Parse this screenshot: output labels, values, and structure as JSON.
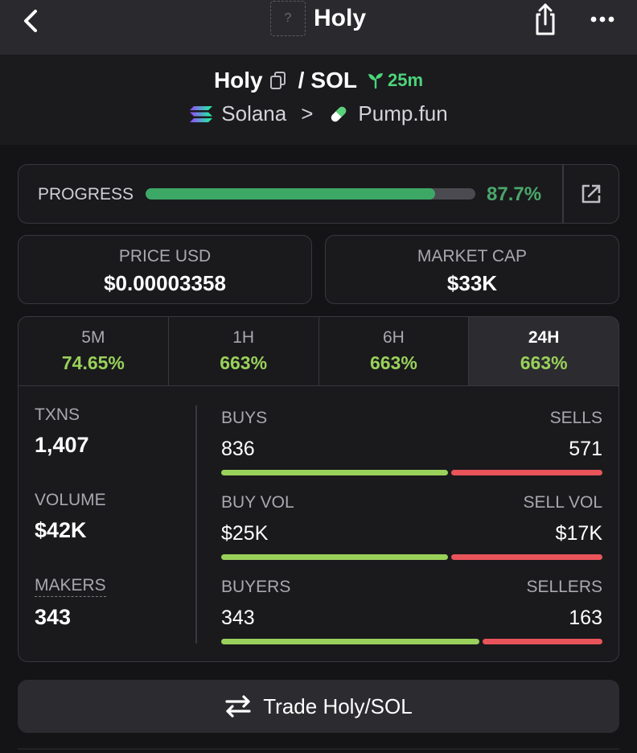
{
  "topbar": {
    "title": "Holy",
    "thumb_placeholder": "?",
    "icons": [
      "back-arrow-icon",
      "share-icon",
      "more-icon"
    ]
  },
  "header": {
    "token": "Holy",
    "separator": "/",
    "quote": "SOL",
    "age": "25m",
    "chain": "Solana",
    "chevron": ">",
    "dex": "Pump.fun",
    "icons": [
      "copy-icon",
      "sprout-icon",
      "solana-logo-icon",
      "pill-icon"
    ]
  },
  "progress": {
    "label": "PROGRESS",
    "percent_text": "87.7%",
    "fraction": 0.877,
    "colors": {
      "fill": "#3da866",
      "track": "#4a4a50",
      "text": "#4aa86a"
    }
  },
  "stats": {
    "price_label": "PRICE USD",
    "price_value": "$0.00003358",
    "mcap_label": "MARKET CAP",
    "mcap_value": "$33K"
  },
  "timeframes": [
    {
      "label": "5M",
      "change": "74.65%",
      "active": false
    },
    {
      "label": "1H",
      "change": "663%",
      "active": false
    },
    {
      "label": "6H",
      "change": "663%",
      "active": false
    },
    {
      "label": "24H",
      "change": "663%",
      "active": true
    }
  ],
  "metrics": [
    {
      "label": "TXNS",
      "value": "1,407"
    },
    {
      "label": "VOLUME",
      "value": "$42K"
    },
    {
      "label": "MAKERS",
      "value": "343"
    }
  ],
  "splits": [
    {
      "left_label": "BUYS",
      "right_label": "SELLS",
      "left_value": "836",
      "right_value": "571",
      "buy_fraction": 0.594
    },
    {
      "left_label": "BUY VOL",
      "right_label": "SELL VOL",
      "left_value": "$25K",
      "right_value": "$17K",
      "buy_fraction": 0.595
    },
    {
      "left_label": "BUYERS",
      "right_label": "SELLERS",
      "left_value": "343",
      "right_value": "163",
      "buy_fraction": 0.678
    }
  ],
  "trade_button": {
    "label": "Trade Holy/SOL",
    "icon": "swap-arrows-icon"
  },
  "colors": {
    "buy": "#9ad15a",
    "sell": "#e9545a",
    "positive": "#9ad15a",
    "age": "#4cd47a"
  }
}
